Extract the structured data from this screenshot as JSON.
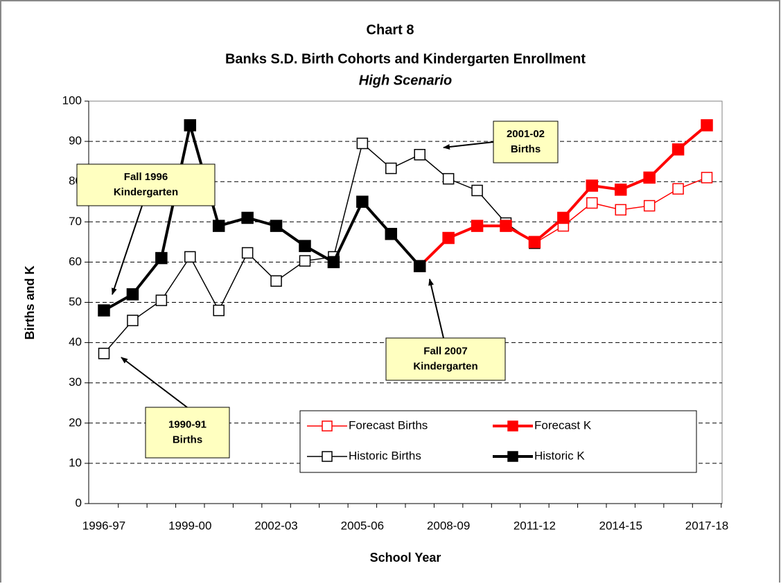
{
  "chart_data": {
    "type": "line",
    "title": "Chart 8",
    "subtitle": "Banks S.D. Birth Cohorts and Kindergarten Enrollment",
    "scenario": "High Scenario",
    "x_label": "School Year",
    "y_label": "Births and K",
    "categories": [
      "1996-97",
      null,
      null,
      "1999-00",
      null,
      null,
      "2002-03",
      null,
      null,
      "2005-06",
      null,
      null,
      "2008-09",
      null,
      null,
      "2011-12",
      null,
      null,
      "2014-15",
      null,
      null,
      "2017-18"
    ],
    "ylim": [
      0,
      100
    ],
    "yticks": [
      0,
      10,
      20,
      30,
      40,
      50,
      60,
      70,
      80,
      90,
      100
    ],
    "grid": true,
    "series": [
      {
        "name": "Forecast Births",
        "color": "#ff0000",
        "marker": "hollow",
        "line_width": 1.5,
        "values": [
          null,
          null,
          null,
          null,
          null,
          null,
          null,
          null,
          null,
          null,
          null,
          null,
          null,
          null,
          null,
          64.7,
          69,
          74.7,
          73,
          74,
          78.2,
          81
        ]
      },
      {
        "name": "Forecast K",
        "color": "#ff0000",
        "marker": "filled",
        "line_width": 4,
        "values": [
          null,
          null,
          null,
          null,
          null,
          null,
          null,
          null,
          null,
          null,
          null,
          59,
          66,
          69,
          69,
          65,
          71,
          79,
          78,
          81,
          88,
          94
        ]
      },
      {
        "name": "Historic Births",
        "color": "#000000",
        "marker": "hollow",
        "line_width": 1.5,
        "values": [
          37.3,
          45.5,
          50.5,
          61.3,
          48,
          62.3,
          55.3,
          60.3,
          61.3,
          89.5,
          83.3,
          86.7,
          80.7,
          77.8,
          69.7,
          64.7,
          null,
          null,
          null,
          null,
          null,
          null
        ]
      },
      {
        "name": "Historic K",
        "color": "#000000",
        "marker": "filled",
        "line_width": 4,
        "values": [
          48,
          52,
          61,
          94,
          69,
          71,
          69,
          64,
          60,
          75,
          67,
          59,
          null,
          null,
          null,
          null,
          null,
          null,
          null,
          null,
          null,
          null
        ]
      }
    ],
    "annotations": [
      {
        "lines": [
          "Fall 1996",
          "Kindergarten"
        ]
      },
      {
        "lines": [
          "2001-02",
          "Births"
        ]
      },
      {
        "lines": [
          "Fall 2007",
          "Kindergarten"
        ]
      },
      {
        "lines": [
          "1990-91",
          "Births"
        ]
      }
    ]
  }
}
